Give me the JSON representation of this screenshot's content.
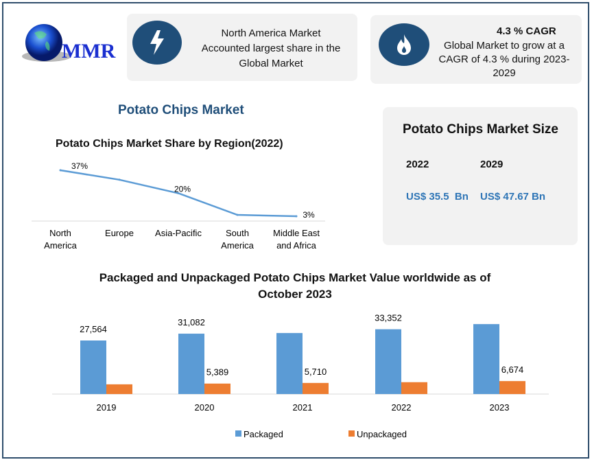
{
  "logo": {
    "text": "MMR"
  },
  "highlight1": {
    "icon": "lightning-bolt-icon",
    "lines": [
      "North America Market",
      "Accounted largest share in the",
      "Global Market"
    ]
  },
  "highlight2": {
    "icon": "flame-icon",
    "title": "4.3 % CAGR",
    "lines": [
      "Global Market to grow at a",
      "CAGR of 4.3 % during 2023-",
      "2029"
    ]
  },
  "main_title": "Potato Chips Market",
  "market_size": {
    "title": "Potato Chips Market Size",
    "years": [
      "2022",
      "2029"
    ],
    "values": [
      "US$ 35.5  Bn",
      "US$ 47.67 Bn"
    ],
    "value_color": "#2e75b6"
  },
  "colors": {
    "accent": "#1f4e79",
    "packaged": "#5b9bd5",
    "unpackaged": "#ed7d31",
    "line": "#5b9bd5"
  },
  "chart_data": [
    {
      "type": "line",
      "title": "Potato Chips Market Share by Region(2022)",
      "categories": [
        "North America",
        "Europe",
        "Asia-Pacific",
        "South America",
        "Middle East and Africa"
      ],
      "category_lines": [
        [
          "North",
          "America"
        ],
        [
          "Europe"
        ],
        [
          "Asia-Pacific"
        ],
        [
          "South",
          "America"
        ],
        [
          "Middle East",
          "and Africa"
        ]
      ],
      "values": [
        37,
        30,
        20,
        4,
        3
      ],
      "data_labels": [
        "37%",
        null,
        "20%",
        null,
        "3%"
      ],
      "unit": "%",
      "grid": false
    },
    {
      "type": "bar",
      "title_lines": [
        "Packaged and Unpackaged Potato Chips Market Value worldwide as of",
        "October 2023"
      ],
      "categories": [
        "2019",
        "2020",
        "2021",
        "2022",
        "2023"
      ],
      "series": [
        {
          "name": "Packaged",
          "values": [
            27564,
            31082,
            31400,
            33352,
            36000
          ],
          "data_labels": [
            "27,564",
            "31,082",
            null,
            "33,352",
            null
          ]
        },
        {
          "name": "Unpackaged",
          "values": [
            5000,
            5389,
            5710,
            6100,
            6674
          ],
          "data_labels": [
            null,
            "5,389",
            "5,710",
            null,
            "6,674"
          ]
        }
      ],
      "legend": "bottom",
      "grid": false
    }
  ]
}
